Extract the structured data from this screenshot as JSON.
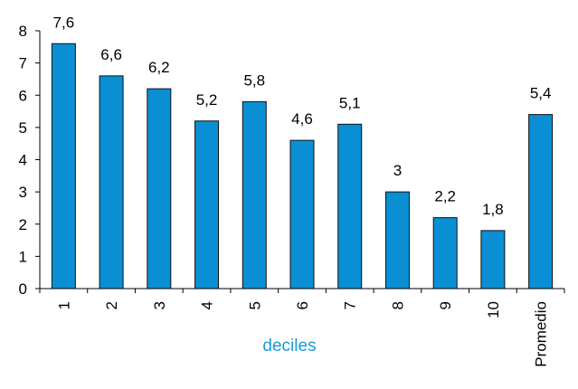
{
  "chart_data": {
    "type": "bar",
    "categories": [
      "1",
      "2",
      "3",
      "4",
      "5",
      "6",
      "7",
      "8",
      "9",
      "10",
      "Promedio"
    ],
    "values": [
      7.6,
      6.6,
      6.2,
      5.2,
      5.8,
      4.6,
      5.1,
      3,
      2.2,
      1.8,
      5.4
    ],
    "data_labels": [
      "7,6",
      "6,6",
      "6,2",
      "5,2",
      "5,8",
      "4,6",
      "5,1",
      "3",
      "2,2",
      "1,8",
      "5,4"
    ],
    "title": "",
    "xlabel": "deciles",
    "ylabel": "",
    "ylim": [
      0,
      8
    ],
    "yticks": [
      0,
      1,
      2,
      3,
      4,
      5,
      6,
      7,
      8
    ],
    "grid": false,
    "legend": "none",
    "colors": {
      "bar": "#0A8FD4",
      "bar_stroke": "#111111",
      "axis": "#000000",
      "xlabel": "#1A9AD8",
      "text": "#000000"
    }
  }
}
